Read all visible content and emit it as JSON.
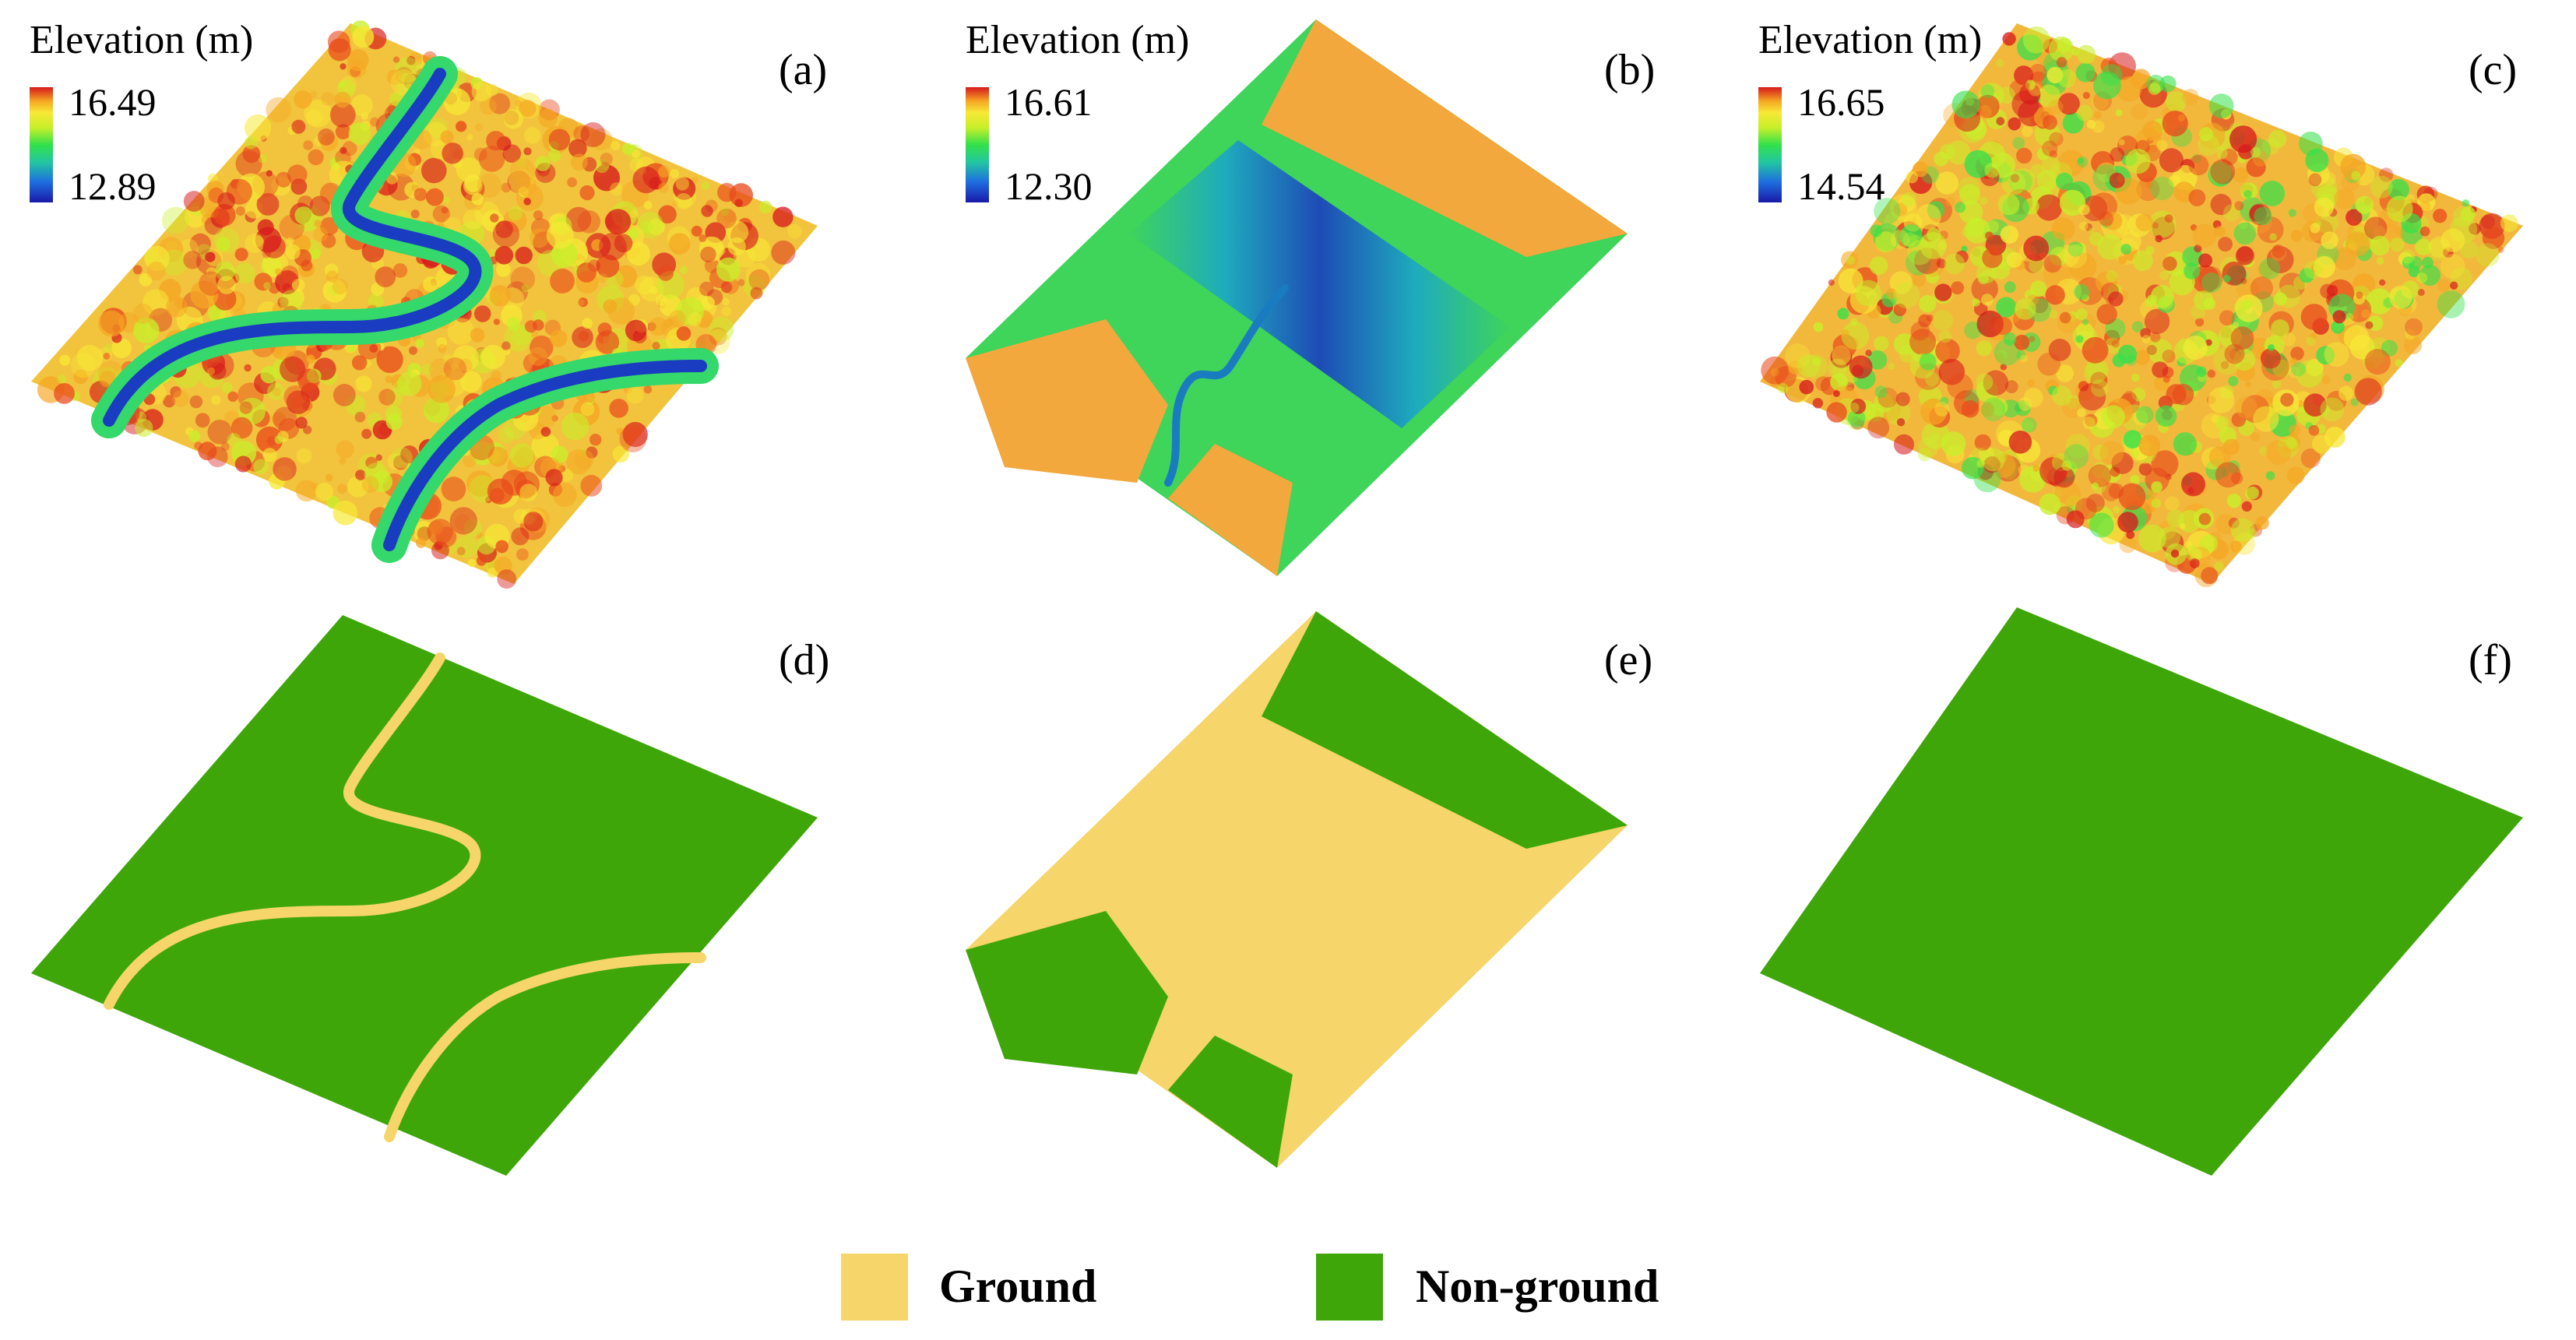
{
  "colors": {
    "ground": "#f6d56a",
    "non_ground": "#3fa60a",
    "water_blue": "#1e3fc8",
    "ramp": [
      "#1a1aa8",
      "#1f6fe0",
      "#22c7a0",
      "#33e14a",
      "#c8ef2a",
      "#f7e836",
      "#f5a623",
      "#e8481c",
      "#d7191c"
    ]
  },
  "panels": [
    {
      "id": "a",
      "label": "(a)",
      "colorbar_title": "Elevation (m)",
      "colorbar_max": "16.49",
      "colorbar_min": "12.89",
      "pattern": "two-rivers"
    },
    {
      "id": "b",
      "label": "(b)",
      "colorbar_title": "Elevation (m)",
      "colorbar_max": "16.61",
      "colorbar_min": "12.30",
      "pattern": "wide-channel"
    },
    {
      "id": "c",
      "label": "(c)",
      "colorbar_title": "Elevation (m)",
      "colorbar_max": "16.65",
      "colorbar_min": "14.54",
      "pattern": "no-river"
    },
    {
      "id": "d",
      "label": "(d)",
      "pattern": "two-rivers-classified"
    },
    {
      "id": "e",
      "label": "(e)",
      "pattern": "wide-channel-classified"
    },
    {
      "id": "f",
      "label": "(f)",
      "pattern": "all-non-ground"
    }
  ],
  "legend": {
    "ground_label": "Ground",
    "non_ground_label": "Non-ground"
  }
}
